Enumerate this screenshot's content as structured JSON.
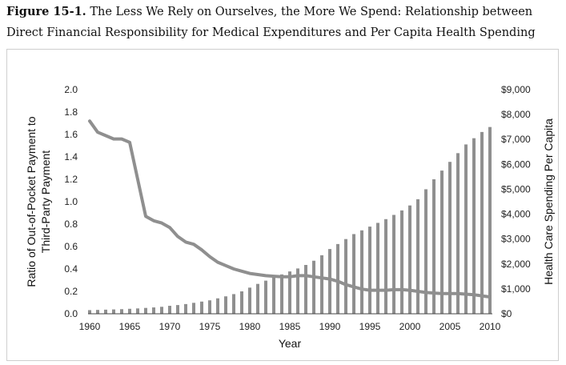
{
  "caption": {
    "label": "Figure 15-1.",
    "text": "The Less We Rely on Ourselves, the More We Spend: Relationship between Direct Financial Responsibility for Medical Expenditures and Per Capita Health Spending"
  },
  "chart_data": {
    "type": "bar+line",
    "xlabel": "Year",
    "ylabel_left_line1": "Ratio of Out-of-Pocket Payment to",
    "ylabel_left_line2": "Third-Party Payment",
    "ylabel_right": "Health Care Spending Per Capita",
    "ylim_left": [
      0,
      2
    ],
    "ylim_right": [
      0,
      9000
    ],
    "left_ticks": [
      "0.0",
      "0.2",
      "0.4",
      "0.6",
      "0.8",
      "1.0",
      "1.2",
      "1.4",
      "1.6",
      "1.8",
      "2.0"
    ],
    "right_ticks": [
      "$0",
      "$1,000",
      "$2,000",
      "$3,000",
      "$4,000",
      "$5,000",
      "$6,000",
      "$7,000",
      "$8,000",
      "$9,000"
    ],
    "x_ticks": [
      "1960",
      "1965",
      "1970",
      "1975",
      "1980",
      "1985",
      "1990",
      "1995",
      "2000",
      "2005",
      "2010"
    ],
    "colors": {
      "bars": "#8f8f8f",
      "line": "#8f8f8f"
    },
    "years": [
      1960,
      1961,
      1962,
      1963,
      1964,
      1965,
      1966,
      1967,
      1968,
      1969,
      1970,
      1971,
      1972,
      1973,
      1974,
      1975,
      1976,
      1977,
      1978,
      1979,
      1980,
      1981,
      1982,
      1983,
      1984,
      1985,
      1986,
      1987,
      1988,
      1989,
      1990,
      1991,
      1992,
      1993,
      1994,
      1995,
      1996,
      1997,
      1998,
      1999,
      2000,
      2001,
      2002,
      2003,
      2004,
      2005,
      2006,
      2007,
      2008,
      2009,
      2010
    ],
    "spending_per_capita": [
      147,
      155,
      165,
      175,
      185,
      200,
      215,
      235,
      255,
      280,
      320,
      350,
      390,
      440,
      490,
      540,
      620,
      700,
      790,
      900,
      1050,
      1200,
      1330,
      1460,
      1580,
      1700,
      1820,
      1960,
      2130,
      2350,
      2600,
      2800,
      3000,
      3200,
      3350,
      3500,
      3650,
      3800,
      3970,
      4150,
      4350,
      4600,
      5000,
      5400,
      5750,
      6100,
      6450,
      6800,
      7050,
      7300,
      7500
    ],
    "ratio_out_of_pocket": [
      1.72,
      1.62,
      1.59,
      1.56,
      1.56,
      1.53,
      1.2,
      0.87,
      0.83,
      0.81,
      0.77,
      0.69,
      0.64,
      0.62,
      0.57,
      0.51,
      0.46,
      0.43,
      0.4,
      0.38,
      0.36,
      0.35,
      0.34,
      0.335,
      0.33,
      0.33,
      0.34,
      0.34,
      0.33,
      0.32,
      0.31,
      0.29,
      0.26,
      0.24,
      0.22,
      0.21,
      0.21,
      0.21,
      0.215,
      0.215,
      0.21,
      0.2,
      0.19,
      0.185,
      0.18,
      0.18,
      0.18,
      0.175,
      0.17,
      0.16,
      0.15
    ]
  }
}
